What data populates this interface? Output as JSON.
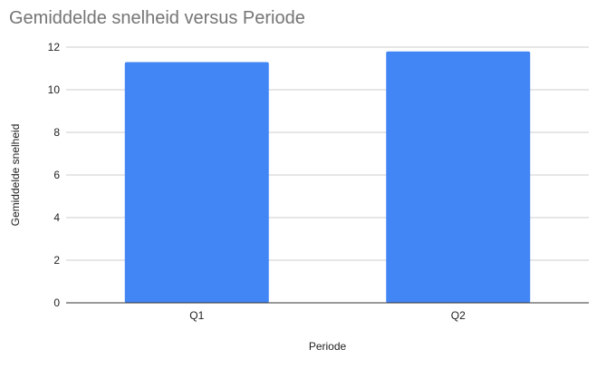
{
  "chart_data": {
    "type": "bar",
    "title": "Gemiddelde snelheid versus Periode",
    "xlabel": "Periode",
    "ylabel": "Gemiddelde snelheid",
    "categories": [
      "Q1",
      "Q2"
    ],
    "values": [
      11.3,
      11.8
    ],
    "ylim": [
      0,
      12
    ],
    "yticks": [
      0,
      2,
      4,
      6,
      8,
      10,
      12
    ],
    "grid": true,
    "legend": "none",
    "bar_color": "#4285f4"
  }
}
